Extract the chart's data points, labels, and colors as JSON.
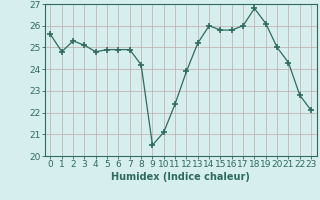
{
  "x": [
    0,
    1,
    2,
    3,
    4,
    5,
    6,
    7,
    8,
    9,
    10,
    11,
    12,
    13,
    14,
    15,
    16,
    17,
    18,
    19,
    20,
    21,
    22,
    23
  ],
  "y": [
    25.6,
    24.8,
    25.3,
    25.1,
    24.8,
    24.9,
    24.9,
    24.9,
    24.2,
    20.5,
    21.1,
    22.4,
    23.9,
    25.2,
    26.0,
    25.8,
    25.8,
    26.0,
    26.8,
    26.1,
    25.0,
    24.3,
    22.8,
    22.1
  ],
  "line_color": "#2e6b5e",
  "marker": "+",
  "marker_size": 4,
  "bg_color": "#d6eeee",
  "grid_color": "#c0a8a8",
  "xlabel": "Humidex (Indice chaleur)",
  "ylim": [
    20,
    27
  ],
  "xlim": [
    -0.5,
    23.5
  ],
  "yticks": [
    20,
    21,
    22,
    23,
    24,
    25,
    26,
    27
  ],
  "xticks": [
    0,
    1,
    2,
    3,
    4,
    5,
    6,
    7,
    8,
    9,
    10,
    11,
    12,
    13,
    14,
    15,
    16,
    17,
    18,
    19,
    20,
    21,
    22,
    23
  ],
  "label_fontsize": 7,
  "tick_fontsize": 6.5
}
